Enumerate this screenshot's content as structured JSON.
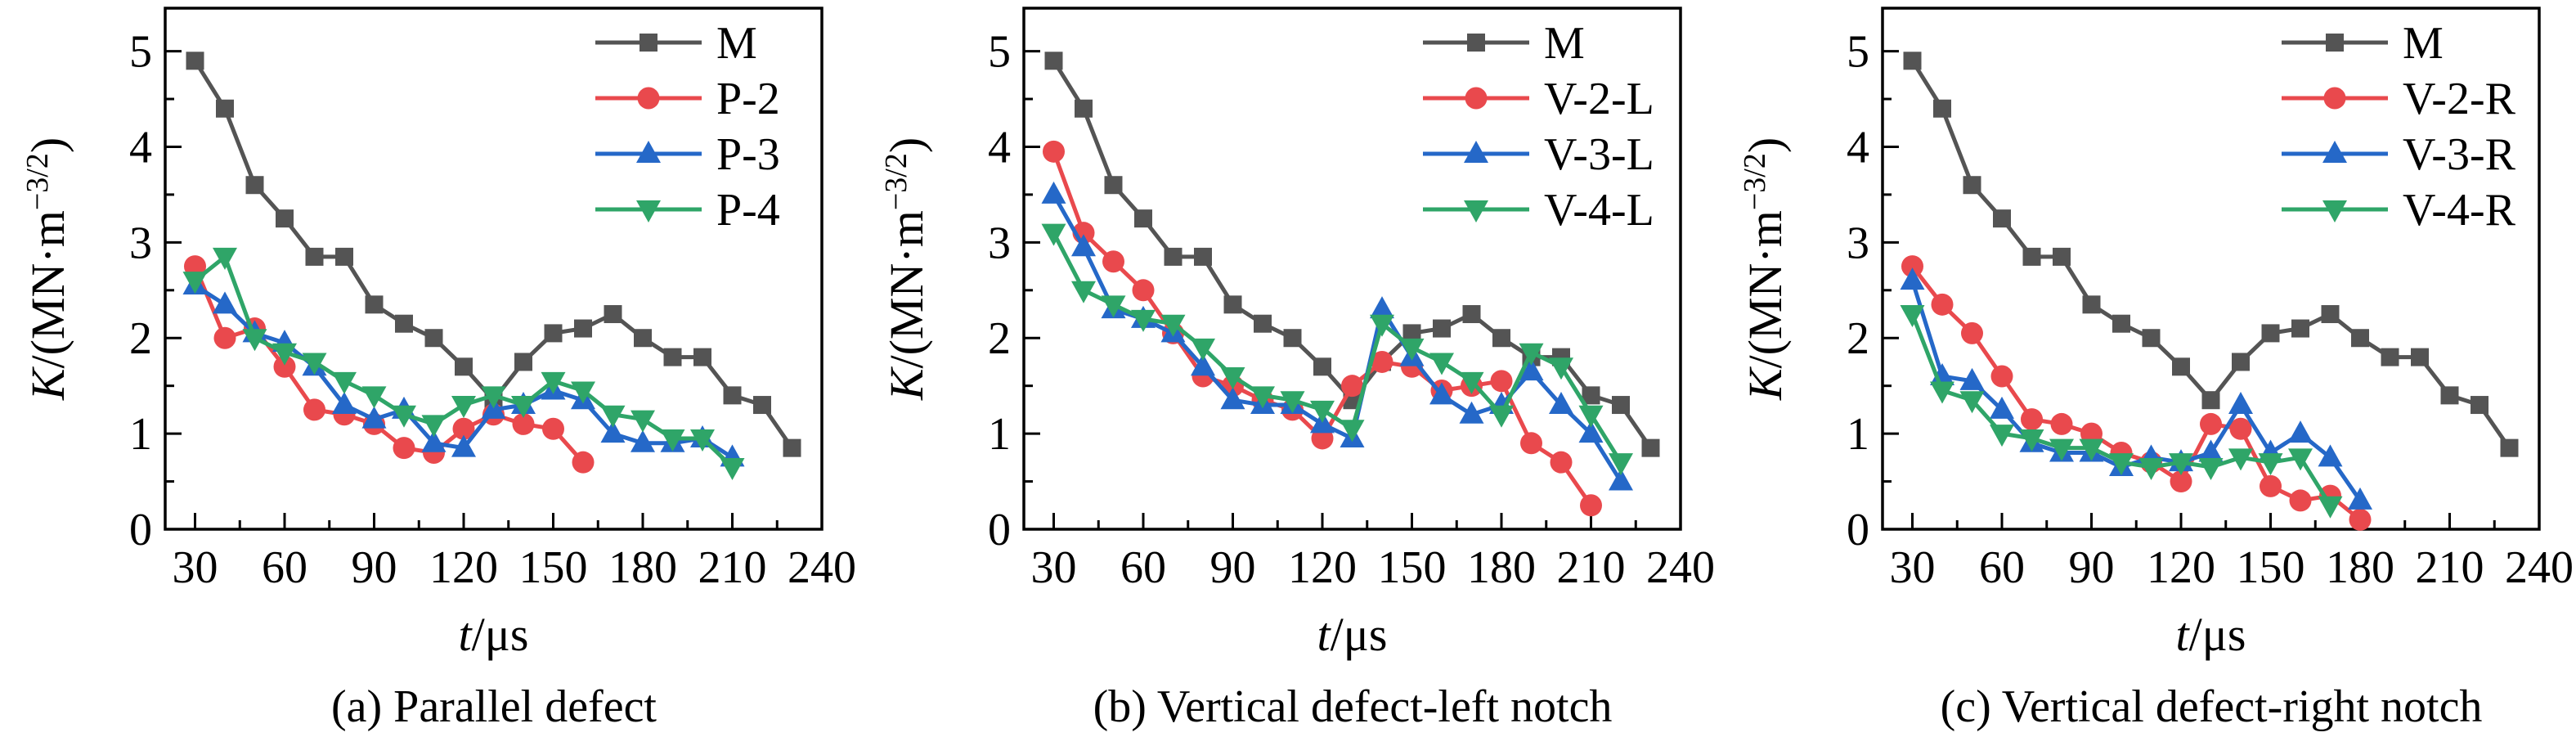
{
  "figure": {
    "background": "#ffffff",
    "description": "Three line charts of stress intensity factor K versus time t for different defect configurations"
  },
  "chart_data": [
    {
      "type": "line",
      "panel": "a",
      "caption": "(a) Parallel defect",
      "xlabel": {
        "italic": "t",
        "normal": "/μs"
      },
      "ylabel": {
        "italic": "K",
        "normal": "/(MN·m",
        "sup": "−3/2",
        "close": ")"
      },
      "xlim": [
        20,
        240
      ],
      "ylim": [
        0,
        5.45
      ],
      "xticks": [
        30,
        60,
        90,
        120,
        150,
        180,
        210,
        240
      ],
      "yticks": [
        0,
        1,
        2,
        3,
        4,
        5
      ],
      "grid": false,
      "legend_position": "top-right",
      "series": [
        {
          "name": "M",
          "color": "#545454",
          "marker": "square",
          "t": [
            30,
            40,
            50,
            60,
            70,
            80,
            90,
            100,
            110,
            120,
            130,
            140,
            150,
            160,
            170,
            180,
            190,
            200,
            210,
            220,
            230
          ],
          "values": [
            4.9,
            4.4,
            3.6,
            3.25,
            2.85,
            2.85,
            2.35,
            2.15,
            2.0,
            1.7,
            1.35,
            1.75,
            2.05,
            2.1,
            2.25,
            2.0,
            1.8,
            1.8,
            1.4,
            1.3,
            0.85
          ]
        },
        {
          "name": "P-2",
          "color": "#e9494d",
          "marker": "circle",
          "t": [
            30,
            40,
            50,
            60,
            70,
            80,
            90,
            100,
            110,
            120,
            130,
            140,
            150,
            160
          ],
          "values": [
            2.75,
            2.0,
            2.1,
            1.7,
            1.25,
            1.2,
            1.1,
            0.85,
            0.8,
            1.05,
            1.2,
            1.1,
            1.05,
            0.7
          ]
        },
        {
          "name": "P-3",
          "color": "#2568c8",
          "marker": "triangle-up",
          "t": [
            30,
            40,
            50,
            60,
            70,
            80,
            90,
            100,
            110,
            120,
            130,
            140,
            150,
            160,
            170,
            180,
            190,
            200,
            210
          ],
          "values": [
            2.55,
            2.35,
            2.05,
            1.95,
            1.7,
            1.3,
            1.15,
            1.25,
            0.9,
            0.85,
            1.25,
            1.3,
            1.45,
            1.35,
            1.0,
            0.9,
            0.9,
            0.95,
            0.75
          ]
        },
        {
          "name": "P-4",
          "color": "#2fa568",
          "marker": "triangle-down",
          "t": [
            30,
            40,
            50,
            60,
            70,
            80,
            90,
            100,
            110,
            120,
            130,
            140,
            150,
            160,
            170,
            180,
            190,
            200,
            210
          ],
          "values": [
            2.6,
            2.85,
            2.0,
            1.85,
            1.75,
            1.55,
            1.4,
            1.2,
            1.1,
            1.3,
            1.4,
            1.3,
            1.55,
            1.45,
            1.2,
            1.15,
            0.95,
            0.95,
            0.65
          ]
        }
      ]
    },
    {
      "type": "line",
      "panel": "b",
      "caption": "(b) Vertical defect-left notch",
      "xlabel": {
        "italic": "t",
        "normal": "/μs"
      },
      "ylabel": {
        "italic": "K",
        "normal": "/(MN·m",
        "sup": "−3/2",
        "close": ")"
      },
      "xlim": [
        20,
        240
      ],
      "ylim": [
        0,
        5.45
      ],
      "xticks": [
        30,
        60,
        90,
        120,
        150,
        180,
        210,
        240
      ],
      "yticks": [
        0,
        1,
        2,
        3,
        4,
        5
      ],
      "grid": false,
      "legend_position": "top-right",
      "series": [
        {
          "name": "M",
          "color": "#545454",
          "marker": "square",
          "t": [
            30,
            40,
            50,
            60,
            70,
            80,
            90,
            100,
            110,
            120,
            130,
            140,
            150,
            160,
            170,
            180,
            190,
            200,
            210,
            220,
            230
          ],
          "values": [
            4.9,
            4.4,
            3.6,
            3.25,
            2.85,
            2.85,
            2.35,
            2.15,
            2.0,
            1.7,
            1.35,
            1.75,
            2.05,
            2.1,
            2.25,
            2.0,
            1.8,
            1.8,
            1.4,
            1.3,
            0.85
          ]
        },
        {
          "name": "V-2-L",
          "color": "#e9494d",
          "marker": "circle",
          "t": [
            30,
            40,
            50,
            60,
            70,
            80,
            90,
            100,
            110,
            120,
            130,
            140,
            150,
            160,
            170,
            180,
            190,
            200,
            210
          ],
          "values": [
            3.95,
            3.1,
            2.8,
            2.5,
            2.05,
            1.6,
            1.5,
            1.35,
            1.25,
            0.95,
            1.5,
            1.75,
            1.7,
            1.45,
            1.5,
            1.55,
            0.9,
            0.7,
            0.25
          ]
        },
        {
          "name": "V-3-L",
          "color": "#2568c8",
          "marker": "triangle-up",
          "t": [
            30,
            40,
            50,
            60,
            70,
            80,
            90,
            100,
            110,
            120,
            130,
            140,
            150,
            160,
            170,
            180,
            190,
            200,
            210,
            220
          ],
          "values": [
            3.5,
            2.95,
            2.3,
            2.2,
            2.05,
            1.7,
            1.35,
            1.3,
            1.3,
            1.1,
            0.95,
            2.3,
            1.8,
            1.4,
            1.2,
            1.3,
            1.65,
            1.3,
            1.0,
            0.5
          ]
        },
        {
          "name": "V-4-L",
          "color": "#2fa568",
          "marker": "triangle-down",
          "t": [
            30,
            40,
            50,
            60,
            70,
            80,
            90,
            100,
            110,
            120,
            130,
            140,
            150,
            160,
            170,
            180,
            190,
            200,
            210,
            220
          ],
          "values": [
            3.1,
            2.5,
            2.35,
            2.2,
            2.15,
            1.9,
            1.6,
            1.4,
            1.35,
            1.25,
            1.05,
            2.15,
            1.9,
            1.75,
            1.55,
            1.2,
            1.85,
            1.7,
            1.2,
            0.7
          ]
        }
      ]
    },
    {
      "type": "line",
      "panel": "c",
      "caption": "(c) Vertical defect-right notch",
      "xlabel": {
        "italic": "t",
        "normal": "/μs"
      },
      "ylabel": {
        "italic": "K",
        "normal": "/(MN·m",
        "sup": "−3/2",
        "close": ")"
      },
      "xlim": [
        20,
        240
      ],
      "ylim": [
        0,
        5.45
      ],
      "xticks": [
        30,
        60,
        90,
        120,
        150,
        180,
        210,
        240
      ],
      "yticks": [
        0,
        1,
        2,
        3,
        4,
        5
      ],
      "grid": false,
      "legend_position": "top-right",
      "series": [
        {
          "name": "M",
          "color": "#545454",
          "marker": "square",
          "t": [
            30,
            40,
            50,
            60,
            70,
            80,
            90,
            100,
            110,
            120,
            130,
            140,
            150,
            160,
            170,
            180,
            190,
            200,
            210,
            220,
            230
          ],
          "values": [
            4.9,
            4.4,
            3.6,
            3.25,
            2.85,
            2.85,
            2.35,
            2.15,
            2.0,
            1.7,
            1.35,
            1.75,
            2.05,
            2.1,
            2.25,
            2.0,
            1.8,
            1.8,
            1.4,
            1.3,
            0.85
          ]
        },
        {
          "name": "V-2-R",
          "color": "#e9494d",
          "marker": "circle",
          "t": [
            30,
            40,
            50,
            60,
            70,
            80,
            90,
            100,
            110,
            120,
            130,
            140,
            150,
            160,
            170,
            180
          ],
          "values": [
            2.75,
            2.35,
            2.05,
            1.6,
            1.15,
            1.1,
            1.0,
            0.8,
            0.7,
            0.5,
            1.1,
            1.05,
            0.45,
            0.3,
            0.35,
            0.1
          ]
        },
        {
          "name": "V-3-R",
          "color": "#2568c8",
          "marker": "triangle-up",
          "t": [
            30,
            40,
            50,
            60,
            70,
            80,
            90,
            100,
            110,
            120,
            130,
            140,
            150,
            160,
            170,
            180
          ],
          "values": [
            2.6,
            1.6,
            1.55,
            1.25,
            0.9,
            0.8,
            0.8,
            0.65,
            0.75,
            0.7,
            0.8,
            1.3,
            0.8,
            1.0,
            0.75,
            0.3
          ]
        },
        {
          "name": "V-4-R",
          "color": "#2fa568",
          "marker": "triangle-down",
          "t": [
            30,
            40,
            50,
            60,
            70,
            80,
            90,
            100,
            110,
            120,
            130,
            140,
            150,
            160,
            170
          ],
          "values": [
            2.25,
            1.45,
            1.35,
            1.0,
            0.95,
            0.85,
            0.85,
            0.7,
            0.65,
            0.7,
            0.65,
            0.75,
            0.7,
            0.75,
            0.25
          ]
        }
      ]
    }
  ]
}
